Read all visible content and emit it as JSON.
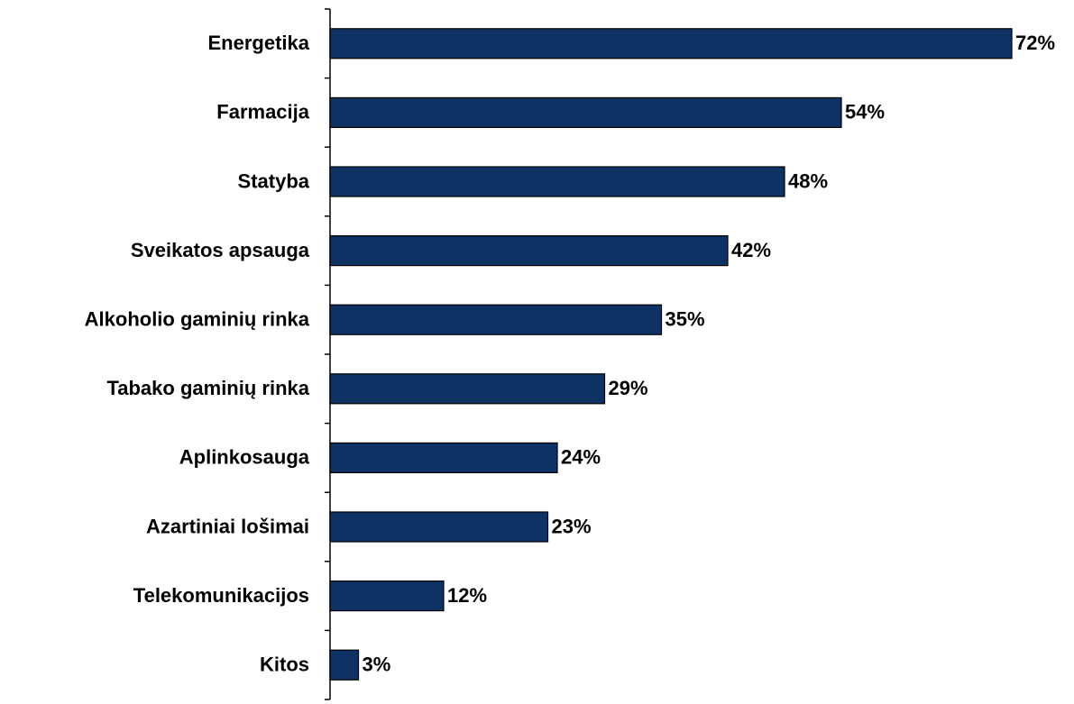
{
  "chart_data": {
    "type": "bar",
    "orientation": "horizontal",
    "categories": [
      "Energetika",
      "Farmacija",
      "Statyba",
      "Sveikatos apsauga",
      "Alkoholio gaminių rinka",
      "Tabako gaminių rinka",
      "Aplinkosauga",
      "Azartiniai lošimai",
      "Telekomunikacijos",
      "Kitos"
    ],
    "values": [
      72,
      54,
      48,
      42,
      35,
      29,
      24,
      23,
      12,
      3
    ],
    "value_labels": [
      "72%",
      "54%",
      "48%",
      "42%",
      "35%",
      "29%",
      "24%",
      "23%",
      "12%",
      "3%"
    ],
    "color": "#0d3263"
  }
}
